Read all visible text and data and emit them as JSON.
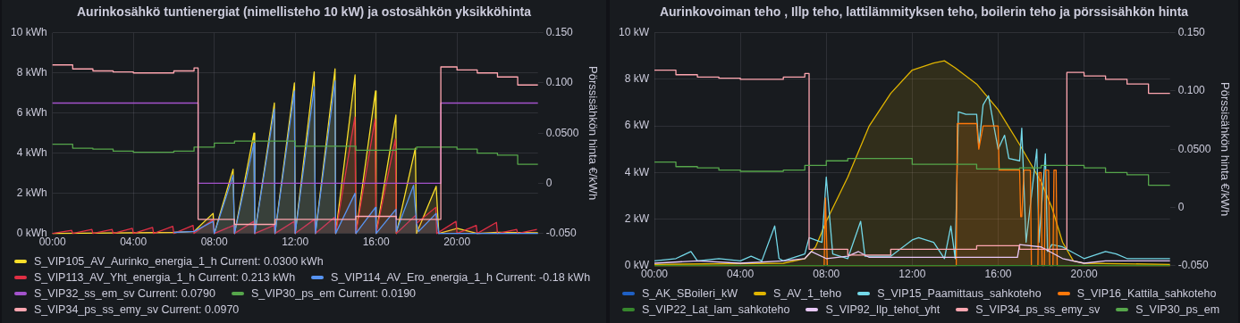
{
  "chart_data": [
    {
      "type": "area",
      "title": "Aurinkosähkö tuntienergiat (nimellisteho 10 kW) ja ostosähkön yksikköhinta",
      "y2label": "Pörssisähkön hinta €/kWh",
      "xlim": [
        0,
        24
      ],
      "xticks": [
        {
          "value": 0,
          "label": "00:00"
        },
        {
          "value": 4,
          "label": "04:00"
        },
        {
          "value": 8,
          "label": "08:00"
        },
        {
          "value": 12,
          "label": "12:00"
        },
        {
          "value": 16,
          "label": "16:00"
        },
        {
          "value": 20,
          "label": "20:00"
        }
      ],
      "ylim": [
        0,
        10
      ],
      "yticks": [
        {
          "value": 0,
          "label": "0 kWh"
        },
        {
          "value": 2,
          "label": "2 kWh"
        },
        {
          "value": 4,
          "label": "4 kWh"
        },
        {
          "value": 6,
          "label": "6 kWh"
        },
        {
          "value": 8,
          "label": "8 kWh"
        },
        {
          "value": 10,
          "label": "10 kWh"
        }
      ],
      "y2lim": [
        -0.05,
        0.15
      ],
      "y2ticks": [
        {
          "value": -0.05,
          "label": "-0.050"
        },
        0,
        {
          "value": 0.05,
          "label": "0.0500"
        },
        {
          "value": 0.1,
          "label": "0.100"
        },
        {
          "value": 0.15,
          "label": "0.150"
        }
      ],
      "grid": true,
      "legend": "bottom",
      "marker": "none",
      "series": [
        {
          "name": "S_VIP105_AV_Aurinko_energia_1_h Current: 0.0300 kWh",
          "color": "#fade2a",
          "x": [
            0,
            6,
            7,
            7.94,
            8,
            8.93,
            9,
            9.96,
            10,
            10.97,
            11,
            11.96,
            12,
            12.94,
            13,
            13.97,
            14,
            14.96,
            15,
            15.97,
            16,
            16.98,
            17,
            17.94,
            18,
            18.97,
            19.1,
            20,
            21,
            22,
            24
          ],
          "values": [
            0,
            0.05,
            0.1,
            1.0,
            0,
            3.2,
            0,
            5.0,
            0,
            6.5,
            0,
            7.5,
            0,
            8.05,
            0,
            8.2,
            0,
            7.9,
            0,
            7.1,
            0,
            5.9,
            0,
            4.25,
            0,
            2.35,
            0,
            0.25,
            0,
            0.05,
            0.03
          ]
        },
        {
          "name": "S_VIP113_AV_Yht_energia_1_h Current: 0.213 kWh",
          "color": "#e02f44",
          "x": [
            0,
            0.95,
            1,
            1.95,
            2,
            2.95,
            3,
            3.95,
            4,
            4.95,
            5,
            5.95,
            6,
            6.95,
            7,
            7.95,
            8,
            8.95,
            9,
            9.95,
            10,
            10.95,
            11,
            11.95,
            12,
            12.95,
            13,
            13.95,
            14,
            14.95,
            15,
            15.95,
            16,
            16.95,
            17,
            17.95,
            18,
            18.95,
            19,
            19.95,
            20,
            20.95,
            21,
            21.95,
            22,
            22.95,
            23,
            23.95
          ],
          "values": [
            0,
            0.15,
            0,
            0.2,
            0,
            0.2,
            0,
            0.25,
            0,
            0.3,
            0,
            0.35,
            0,
            0.4,
            0,
            0.7,
            0,
            0.4,
            0,
            0.6,
            0,
            0.4,
            0,
            0.6,
            0,
            0.7,
            0,
            0.8,
            0,
            5.8,
            0,
            5.7,
            0,
            4.7,
            0,
            0.9,
            0.5,
            1.3,
            0,
            0.6,
            0,
            0.4,
            0,
            0.55,
            0,
            0.2,
            0,
            0.2
          ]
        },
        {
          "name": "S_VIP114_AV_Ero_energia_1_h Current: -0.18 kWh",
          "color": "#5794f2",
          "x": [
            6,
            7,
            7.94,
            8,
            8.93,
            9,
            9.96,
            10,
            10.97,
            11,
            11.96,
            12,
            12.94,
            13,
            13.97,
            14,
            14.96,
            15,
            15.97,
            16,
            16.98,
            17,
            17.85,
            18,
            18.1,
            18.97,
            19.1,
            24
          ],
          "values": [
            0.05,
            0.1,
            0.6,
            0,
            2.9,
            0,
            4.5,
            0,
            6.2,
            0,
            7.1,
            0,
            7.3,
            0,
            7.6,
            0,
            2.0,
            0,
            1.3,
            0,
            1.2,
            0.1,
            2.4,
            0.5,
            0.1,
            1.0,
            0,
            0
          ]
        },
        {
          "name": "S_VIP32_ss_em_sv Current: 0.0790",
          "color": "#a352cc",
          "type": "step",
          "axis": "y2",
          "x": [
            0,
            7.2,
            19.2,
            24
          ],
          "values": [
            0.08,
            0,
            0.08,
            0.08
          ]
        },
        {
          "name": "S_VIP30_ps_em Current: 0.0190",
          "color": "#56a64b",
          "type": "step",
          "axis": "y2",
          "x": [
            0,
            1,
            2,
            3,
            4,
            6,
            7,
            8,
            9,
            12,
            15,
            17,
            18,
            20,
            21,
            22,
            23,
            24
          ],
          "values": [
            0.039,
            0.035,
            0.034,
            0.032,
            0.031,
            0.032,
            0.036,
            0.04,
            0.042,
            0.037,
            0.033,
            0.034,
            0.036,
            0.034,
            0.03,
            0.028,
            0.019,
            0.019
          ]
        },
        {
          "name": "S_VIP34_ps_ss_emy_sv Current: 0.0970",
          "color": "#ffa6b0",
          "type": "step",
          "axis": "y2",
          "x": [
            0,
            1,
            2,
            3,
            4,
            6,
            7,
            7.2,
            9,
            11,
            15,
            17,
            19.2,
            20,
            21,
            22,
            23,
            24
          ],
          "values": [
            0.118,
            0.114,
            0.112,
            0.111,
            0.11,
            0.112,
            0.115,
            -0.036,
            -0.041,
            -0.036,
            -0.033,
            -0.036,
            0.116,
            0.113,
            0.11,
            0.106,
            0.098,
            0.098
          ]
        }
      ]
    },
    {
      "type": "line",
      "title": "Aurinkovoiman teho , Illp teho, lattilämmityksen teho, boilerin teho ja pörssisähkön hinta",
      "y2label": "Pörssisähkön hinta €/kWh",
      "xlim": [
        0,
        24
      ],
      "xticks": [
        {
          "value": 0,
          "label": "00:00"
        },
        {
          "value": 4,
          "label": "04:00"
        },
        {
          "value": 8,
          "label": "08:00"
        },
        {
          "value": 12,
          "label": "12:00"
        },
        {
          "value": 16,
          "label": "16:00"
        },
        {
          "value": 20,
          "label": "20:00"
        }
      ],
      "ylim": [
        0,
        10
      ],
      "yticks": [
        {
          "value": 0,
          "label": "0 kW"
        },
        {
          "value": 2,
          "label": "2 kW"
        },
        {
          "value": 4,
          "label": "4 kW"
        },
        {
          "value": 6,
          "label": "6 kW"
        },
        {
          "value": 8,
          "label": "8 kW"
        },
        {
          "value": 10,
          "label": "10 kW"
        }
      ],
      "y2lim": [
        -0.05,
        0.15
      ],
      "y2ticks": [
        {
          "value": -0.05,
          "label": "-0.050"
        },
        0,
        {
          "value": 0.05,
          "label": "0.0500"
        },
        {
          "value": 0.1,
          "label": "0.100"
        },
        {
          "value": 0.15,
          "label": "0.150"
        }
      ],
      "grid": true,
      "legend": "bottom",
      "marker": "none",
      "series": [
        {
          "name": "S_AK_SBoileri_kW",
          "color": "#1f60c4",
          "values": [
            null
          ]
        },
        {
          "name": "S_AV_1_teho",
          "color": "#e0b400",
          "type": "area",
          "x": [
            0,
            6,
            7,
            7.5,
            8,
            9,
            10,
            11,
            12,
            13,
            13.5,
            14,
            15,
            16,
            17,
            18,
            18.5,
            19,
            19.5,
            20,
            24
          ],
          "values": [
            0.05,
            0.1,
            0.3,
            0.8,
            1.9,
            3.8,
            6.0,
            7.4,
            8.4,
            8.7,
            8.8,
            8.5,
            7.8,
            6.7,
            5.2,
            3.6,
            2.5,
            1.0,
            0.2,
            0.1,
            0.05
          ]
        },
        {
          "name": "S_VIP15_Paamittaus_sahkoteho",
          "color": "#73d8e8",
          "x": [
            0,
            1,
            1.7,
            2,
            3,
            4,
            4.5,
            5,
            5.6,
            5.8,
            6,
            7,
            7.2,
            7.8,
            8.0,
            8.3,
            9,
            9.6,
            9.8,
            10,
            11,
            12,
            12.3,
            13,
            13.5,
            13.8,
            14,
            14.15,
            14.5,
            15,
            15.1,
            15.3,
            15.55,
            15.8,
            16,
            16.3,
            16.5,
            17,
            17.1,
            17.3,
            17.8,
            17.9,
            18.2,
            18.3,
            18.5,
            19,
            20,
            21,
            21.5,
            22,
            23,
            24
          ],
          "values": [
            0.2,
            0.3,
            0.6,
            0.2,
            0.3,
            0.2,
            0.4,
            0.2,
            1.7,
            0.3,
            0.2,
            0.5,
            1.2,
            1.0,
            3.8,
            0.5,
            0.3,
            1.9,
            0.4,
            0.4,
            0.4,
            1.1,
            1.2,
            1.0,
            0.3,
            1.7,
            0.3,
            6.6,
            6.5,
            6.5,
            5.1,
            6.9,
            7.3,
            6.0,
            5.0,
            5.6,
            4.6,
            4.5,
            5.9,
            1.0,
            5.0,
            1.0,
            4.8,
            0.6,
            0.9,
            0.8,
            0.3,
            0.6,
            0.5,
            0.3,
            0.3,
            0.3
          ]
        },
        {
          "name": "S_VIP16_Kattila_sahkoteho",
          "color": "#ff780a",
          "type": "area",
          "x": [
            0,
            7.9,
            7.96,
            8.05,
            14.05,
            14.1,
            15.0,
            15.1,
            15.3,
            16.0,
            16.05,
            17.0,
            17.05,
            17.1,
            17.2,
            17.5,
            17.55,
            17.85,
            17.9,
            18.0,
            18.05,
            18.15,
            18.2,
            18.35,
            18.4,
            18.55,
            18.6,
            18.7,
            18.75,
            24
          ],
          "values": [
            0,
            0,
            2.9,
            0,
            0,
            6.1,
            6.1,
            5.0,
            6.0,
            6.0,
            4.1,
            4.1,
            2.1,
            2.1,
            4.1,
            4.1,
            0,
            0,
            4.0,
            4.0,
            0,
            0,
            4.1,
            4.1,
            0,
            0,
            4.1,
            4.1,
            0,
            0
          ]
        },
        {
          "name": "S_VIP22_Lat_lam_sahkoteho",
          "color": "#37872d",
          "x": [
            0,
            4,
            8,
            12,
            16,
            20,
            24
          ],
          "values": [
            0,
            0,
            0,
            0,
            0,
            0,
            0
          ]
        },
        {
          "name": "S_VIP92_Ilp_tehot_yht",
          "color": "#e8c8f8",
          "x": [
            0,
            2,
            4,
            6,
            7,
            7.3,
            8,
            9,
            9.5,
            10,
            12,
            14,
            16,
            16.9,
            17,
            18,
            19,
            20,
            21,
            22,
            24
          ],
          "values": [
            0.1,
            0.2,
            0.1,
            0.2,
            0.3,
            0.6,
            0.3,
            0.4,
            0.6,
            0.35,
            0.35,
            0.35,
            0.35,
            0.35,
            0.9,
            0.8,
            0.3,
            0.1,
            0.2,
            0.2,
            0.2
          ]
        },
        {
          "name": "S_VIP34_ps_ss_emy_sv",
          "color": "#ffa6b0",
          "type": "step",
          "axis": "y2",
          "x": [
            0,
            1,
            2,
            3,
            4,
            6,
            7,
            7.2,
            9,
            11,
            15,
            17,
            19.2,
            20,
            21,
            22,
            23,
            24
          ],
          "values": [
            0.118,
            0.114,
            0.112,
            0.111,
            0.11,
            0.112,
            0.115,
            -0.036,
            -0.041,
            -0.036,
            -0.033,
            -0.036,
            0.116,
            0.113,
            0.11,
            0.106,
            0.098,
            0.098
          ]
        },
        {
          "name": "S_VIP30_ps_em",
          "color": "#56a64b",
          "type": "step",
          "axis": "y2",
          "x": [
            0,
            1,
            2,
            3,
            4,
            6,
            7,
            8,
            9,
            12,
            15,
            17,
            18,
            20,
            21,
            22,
            23,
            24
          ],
          "values": [
            0.039,
            0.035,
            0.034,
            0.032,
            0.031,
            0.032,
            0.036,
            0.04,
            0.042,
            0.037,
            0.033,
            0.034,
            0.036,
            0.034,
            0.03,
            0.028,
            0.019,
            0.019
          ]
        }
      ]
    }
  ]
}
